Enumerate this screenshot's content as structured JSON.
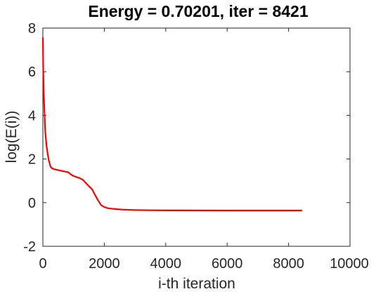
{
  "chart_data": {
    "type": "line",
    "title": "Energy = 0.70201, iter = 8421",
    "xlabel": "i-th iteration",
    "ylabel": "log(E(i))",
    "xlim": [
      0,
      10000
    ],
    "ylim": [
      -2,
      8
    ],
    "xticks": [
      0,
      2000,
      4000,
      6000,
      8000,
      10000
    ],
    "yticks": [
      -2,
      0,
      2,
      4,
      6,
      8
    ],
    "grid": false,
    "legend": "none",
    "series": [
      {
        "color": "#ff0000",
        "x": [
          1,
          10,
          25,
          50,
          80,
          120,
          160,
          200,
          250,
          300,
          400,
          500,
          600,
          700,
          800,
          850,
          900,
          1000,
          1100,
          1200,
          1300,
          1400,
          1500,
          1600,
          1700,
          1800,
          1900,
          2000,
          2100,
          2200,
          2400,
          2600,
          2800,
          3000,
          3500,
          4000,
          5000,
          6000,
          7000,
          8000,
          8421
        ],
        "y": [
          7.55,
          6.3,
          5.2,
          4.2,
          3.2,
          2.6,
          2.2,
          1.9,
          1.65,
          1.57,
          1.52,
          1.49,
          1.46,
          1.43,
          1.4,
          1.37,
          1.3,
          1.22,
          1.17,
          1.12,
          1.05,
          0.9,
          0.75,
          0.62,
          0.35,
          0.1,
          -0.12,
          -0.2,
          -0.25,
          -0.27,
          -0.3,
          -0.32,
          -0.33,
          -0.34,
          -0.35,
          -0.355,
          -0.36,
          -0.365,
          -0.365,
          -0.365,
          -0.365
        ]
      }
    ]
  }
}
